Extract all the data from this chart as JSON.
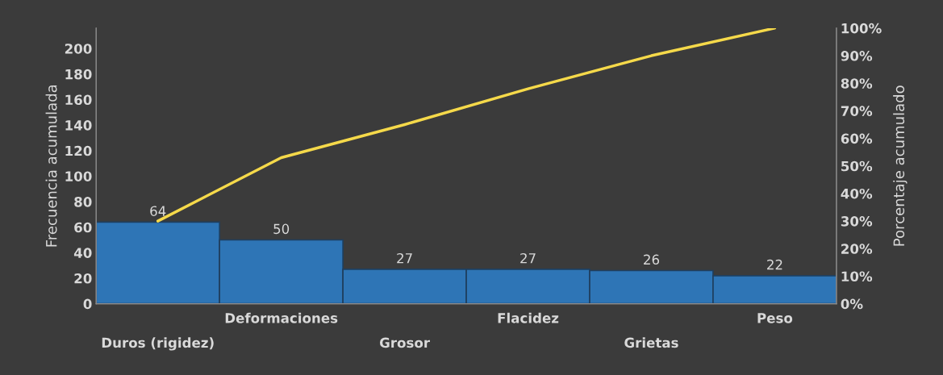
{
  "chart_data": {
    "type": "bar",
    "ylabel": "Frecuencia acumulada",
    "y2label": "Porcentaje acumulado",
    "categories": [
      "Duros (rigidez)",
      "Deformaciones",
      "Grosor",
      "Flacidez",
      "Grietas",
      "Peso"
    ],
    "series": [
      {
        "color": "#2e75b6",
        "values": [
          64,
          50,
          27,
          27,
          26,
          22
        ],
        "value_labels": [
          "64",
          "50",
          "27",
          "27",
          "26",
          "22"
        ]
      },
      {
        "type": "line",
        "axis": "y2",
        "color": "#f5d94a",
        "values": [
          30,
          53,
          65,
          78,
          90,
          100
        ]
      }
    ],
    "ylim": [
      0,
      216
    ],
    "yticks": [
      0,
      20,
      40,
      60,
      80,
      100,
      120,
      140,
      160,
      180,
      200
    ],
    "y2lim": [
      0,
      100
    ],
    "y2ticks": [
      {
        "value": 0,
        "label": "0%"
      },
      {
        "value": 10,
        "label": "10%"
      },
      {
        "value": 20,
        "label": "20%"
      },
      {
        "value": 30,
        "label": "30%"
      },
      {
        "value": 40,
        "label": "40%"
      },
      {
        "value": 50,
        "label": "50%"
      },
      {
        "value": 60,
        "label": "60%"
      },
      {
        "value": 70,
        "label": "70%"
      },
      {
        "value": 80,
        "label": "80%"
      },
      {
        "value": 90,
        "label": "90%"
      },
      {
        "value": 100,
        "label": "100%"
      }
    ],
    "grid": false,
    "legend": false,
    "marker": "none",
    "line_style": "solid"
  }
}
